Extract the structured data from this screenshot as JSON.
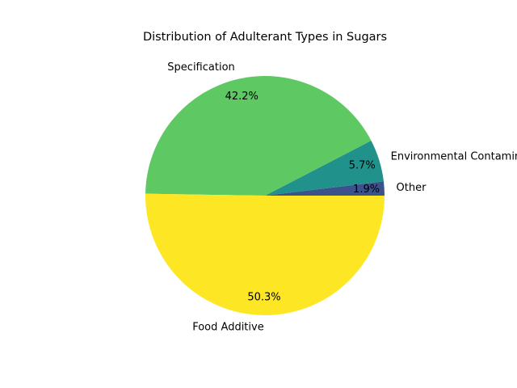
{
  "chart_data": {
    "type": "pie",
    "title": "Distribution of Adulterant Types in Sugars",
    "start_angle_deg": 0,
    "direction": "counterclockwise",
    "slices": [
      {
        "label": "Other",
        "value": 1.9,
        "pct_label": "1.9%",
        "color": "#3b528b"
      },
      {
        "label": "Environmental Contaminant",
        "value": 5.7,
        "pct_label": "5.7%",
        "color": "#21918c"
      },
      {
        "label": "Specification",
        "value": 42.2,
        "pct_label": "42.2%",
        "color": "#5ec962"
      },
      {
        "label": "Food Additive",
        "value": 50.3,
        "pct_label": "50.3%",
        "color": "#fde725"
      }
    ]
  }
}
